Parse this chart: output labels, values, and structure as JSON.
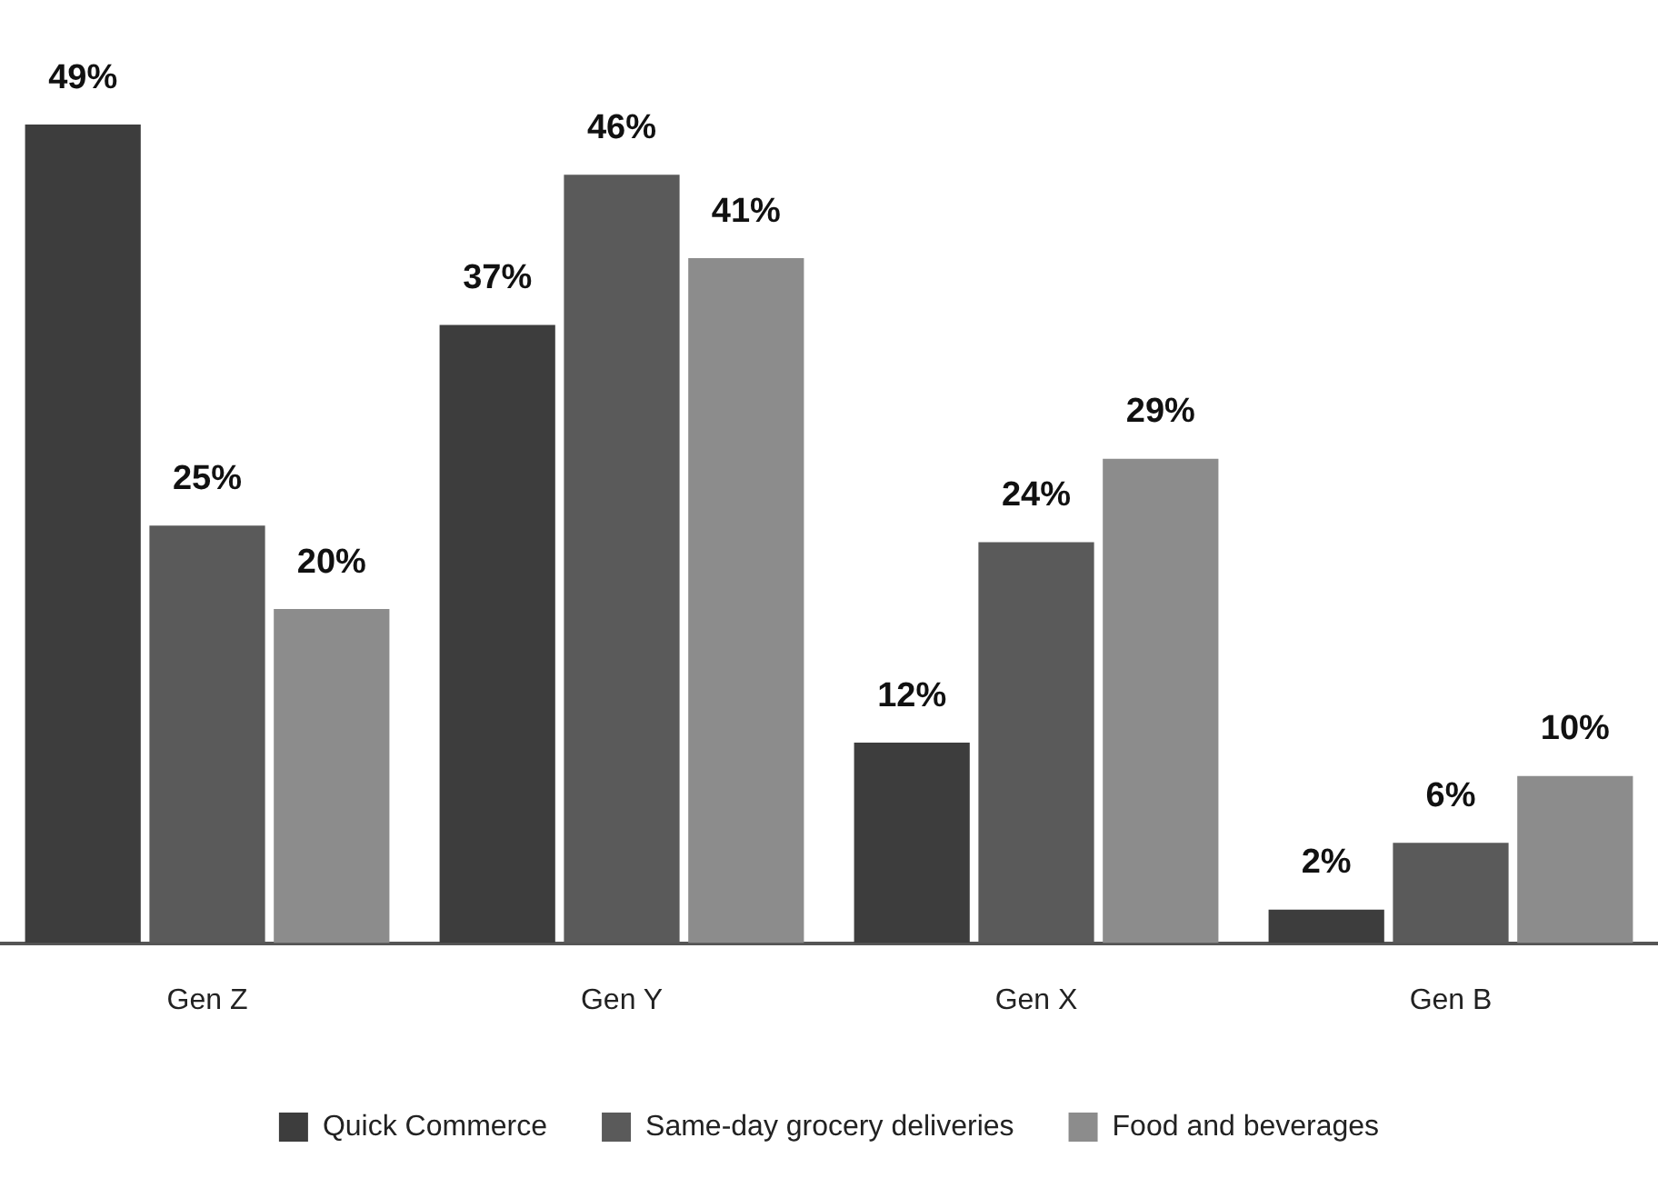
{
  "chart_data": {
    "type": "bar",
    "categories": [
      "Gen Z",
      "Gen Y",
      "Gen X",
      "Gen B"
    ],
    "series": [
      {
        "name": "Quick Commerce",
        "color": "#3d3d3d",
        "values": [
          49,
          37,
          12,
          2
        ],
        "value_labels": [
          "49%",
          "37%",
          "12%",
          "2%"
        ]
      },
      {
        "name": "Same-day grocery deliveries",
        "color": "#5a5a5a",
        "values": [
          25,
          46,
          24,
          6
        ],
        "value_labels": [
          "25%",
          "46%",
          "24%",
          "6%"
        ]
      },
      {
        "name": "Food and beverages",
        "color": "#8c8c8c",
        "values": [
          20,
          41,
          29,
          10
        ],
        "value_labels": [
          "20%",
          "41%",
          "29%",
          "10%"
        ]
      }
    ],
    "grid": false,
    "legend": "bottom"
  }
}
